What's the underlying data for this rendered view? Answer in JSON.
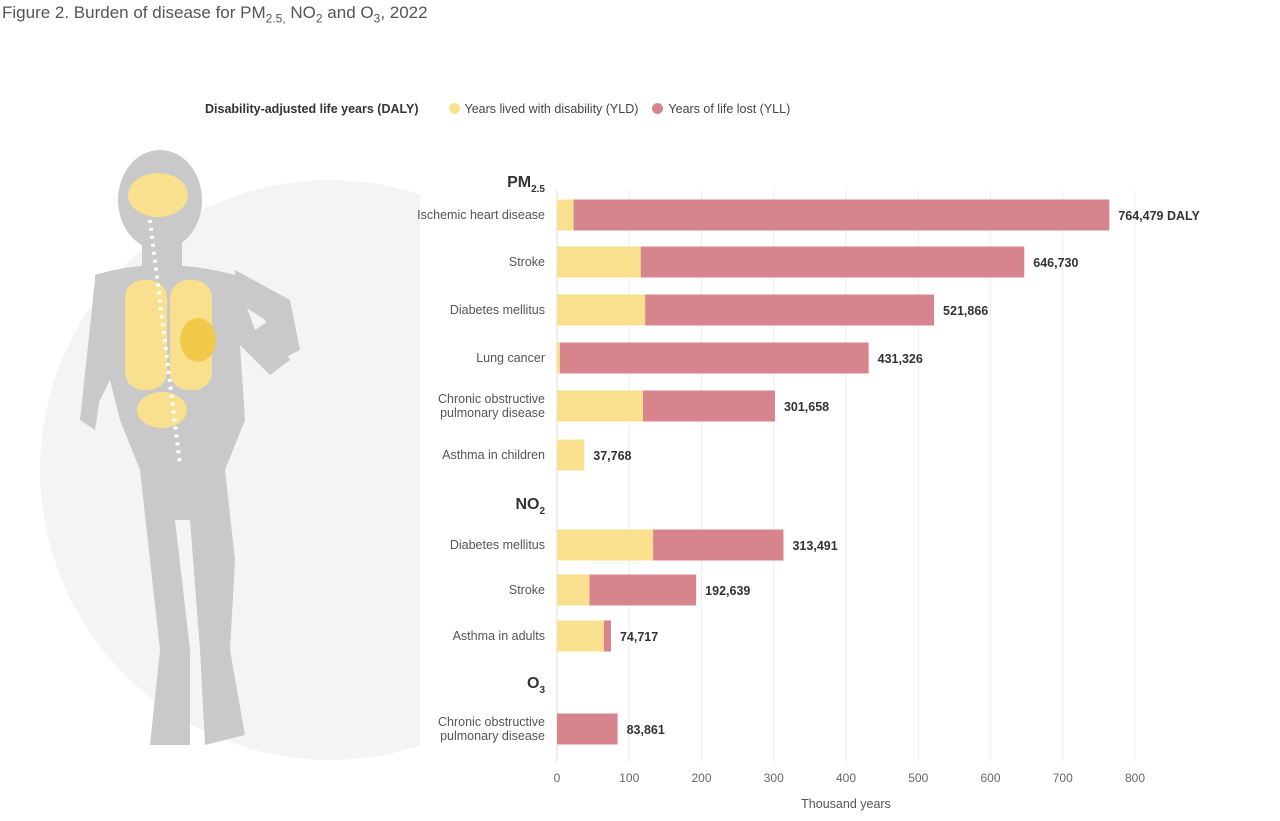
{
  "title": {
    "prefix": "Figure 2. Burden of disease for PM",
    "pm_sub": "2.5,",
    "mid": " NO",
    "no_sub": "2",
    "and": " and O",
    "o_sub": "3",
    "suffix": ", 2022"
  },
  "legend": {
    "title": "Disability-adjusted life years (DALY)",
    "yld": "Years lived with disability (YLD)",
    "yll": "Years of life lost (YLL)"
  },
  "colors": {
    "yld": "#f8e08e",
    "yll": "#d7848c",
    "figure": "#c9c9c9",
    "figure_organs": "#f8e08e",
    "circle": "#f3f5f5"
  },
  "chart_data": {
    "type": "bar",
    "orientation": "horizontal-stacked",
    "xlabel": "Thousand years",
    "xlim": [
      0,
      800
    ],
    "xticks": [
      "0",
      "100",
      "200",
      "300",
      "400",
      "500",
      "600",
      "700",
      "800"
    ],
    "grid": true,
    "legend_position": "top",
    "groups": [
      {
        "name": "PM",
        "sub": "2.5",
        "items": [
          {
            "label": "Ischemic heart disease",
            "yld": 23,
            "total": 764.479,
            "value_label": "764,479 DALY"
          },
          {
            "label": "Stroke",
            "yld": 116,
            "total": 646.73,
            "value_label": "646,730"
          },
          {
            "label": "Diabetes mellitus",
            "yld": 122,
            "total": 521.866,
            "value_label": "521,866"
          },
          {
            "label": "Lung cancer",
            "yld": 4,
            "total": 431.326,
            "value_label": "431,326"
          },
          {
            "label": "Chronic obstructive|pulmonary disease",
            "yld": 119,
            "total": 301.658,
            "value_label": "301,658"
          },
          {
            "label": "Asthma in children",
            "yld": 37.768,
            "total": 37.768,
            "value_label": "37,768"
          }
        ]
      },
      {
        "name": "NO",
        "sub": "2",
        "items": [
          {
            "label": "Diabetes mellitus",
            "yld": 133,
            "total": 313.491,
            "value_label": "313,491"
          },
          {
            "label": "Stroke",
            "yld": 45,
            "total": 192.639,
            "value_label": "192,639"
          },
          {
            "label": "Asthma in adults",
            "yld": 65,
            "total": 74.717,
            "value_label": "74,717"
          }
        ]
      },
      {
        "name": "O",
        "sub": "3",
        "items": [
          {
            "label": "Chronic obstructive|pulmonary disease",
            "yld": 0,
            "total": 83.861,
            "value_label": "83,861"
          }
        ]
      }
    ]
  }
}
